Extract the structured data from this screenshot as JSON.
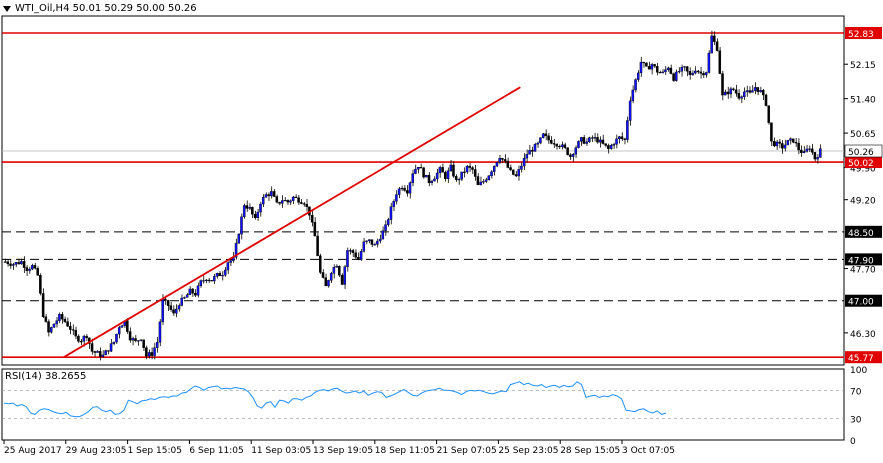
{
  "header": {
    "symbol_line": "WTI_Oil,H4  50.01 50.29 50.00 50.26"
  },
  "colors": {
    "bull": "#1010ff",
    "level_line": "#e00000",
    "trendline": "#e00000",
    "rsi_line": "#1e90ff",
    "price_tag_bg": "#e00000",
    "current_price_bg": "#ffffff"
  },
  "chart_data": [
    {
      "type": "candlestick",
      "title": "WTI_Oil,H4",
      "ylim": [
        45.6,
        53.2
      ],
      "yticks": [
        52.15,
        51.4,
        50.65,
        49.9,
        49.2,
        47.7,
        46.3
      ],
      "xticks": [
        "25 Aug 2017",
        "29 Aug 23:05",
        "1 Sep 15:05",
        "6 Sep 11:05",
        "11 Sep 03:05",
        "13 Sep 19:05",
        "18 Sep 11:05",
        "21 Sep 07:05",
        "25 Sep 23:05",
        "28 Sep 15:05",
        "3 Oct 07:05"
      ],
      "levels": [
        {
          "value": 52.83,
          "label": "52.83",
          "style": "solid"
        },
        {
          "value": 50.02,
          "label": "50.02",
          "style": "solid"
        },
        {
          "value": 48.5,
          "label": "48.50",
          "style": "dashed"
        },
        {
          "value": 47.9,
          "label": "47.90",
          "style": "dashed"
        },
        {
          "value": 47.0,
          "label": "47.00",
          "style": "dashed"
        },
        {
          "value": 45.77,
          "label": "45.77",
          "style": "solid"
        }
      ],
      "current_price": {
        "value": 50.26,
        "label": "50.26"
      },
      "trendline": {
        "from": {
          "bar": 22,
          "value": 45.77
        },
        "to": {
          "bar": 190,
          "value": 51.65
        }
      },
      "close_path": [
        [
          0,
          47.85
        ],
        [
          3,
          47.8
        ],
        [
          6,
          47.85
        ],
        [
          8,
          47.7
        ],
        [
          10,
          47.75
        ],
        [
          12,
          47.55
        ],
        [
          14,
          46.7
        ],
        [
          16,
          46.3
        ],
        [
          18,
          46.5
        ],
        [
          20,
          46.65
        ],
        [
          22,
          46.55
        ],
        [
          24,
          46.4
        ],
        [
          26,
          46.2
        ],
        [
          28,
          46.15
        ],
        [
          30,
          46.25
        ],
        [
          32,
          45.9
        ],
        [
          34,
          45.85
        ],
        [
          36,
          45.8
        ],
        [
          38,
          45.95
        ],
        [
          40,
          46.1
        ],
        [
          42,
          46.45
        ],
        [
          44,
          46.55
        ],
        [
          46,
          46.2
        ],
        [
          48,
          46.1
        ],
        [
          50,
          46.2
        ],
        [
          52,
          45.8
        ],
        [
          54,
          45.85
        ],
        [
          56,
          46.1
        ],
        [
          58,
          47.0
        ],
        [
          60,
          46.9
        ],
        [
          62,
          46.7
        ],
        [
          64,
          46.95
        ],
        [
          66,
          47.05
        ],
        [
          68,
          47.2
        ],
        [
          70,
          47.15
        ],
        [
          72,
          47.4
        ],
        [
          74,
          47.5
        ],
        [
          76,
          47.45
        ],
        [
          78,
          47.55
        ],
        [
          80,
          47.6
        ],
        [
          82,
          47.85
        ],
        [
          84,
          47.9
        ],
        [
          86,
          48.5
        ],
        [
          88,
          49.1
        ],
        [
          90,
          49.0
        ],
        [
          92,
          48.75
        ],
        [
          94,
          49.15
        ],
        [
          96,
          49.3
        ],
        [
          98,
          49.35
        ],
        [
          100,
          49.1
        ],
        [
          102,
          49.2
        ],
        [
          104,
          49.15
        ],
        [
          106,
          49.25
        ],
        [
          108,
          49.2
        ],
        [
          110,
          49.15
        ],
        [
          112,
          48.9
        ],
        [
          114,
          48.4
        ],
        [
          116,
          47.6
        ],
        [
          118,
          47.3
        ],
        [
          120,
          47.65
        ],
        [
          122,
          47.8
        ],
        [
          124,
          47.4
        ],
        [
          126,
          48.1
        ],
        [
          128,
          48.05
        ],
        [
          130,
          47.9
        ],
        [
          132,
          48.25
        ],
        [
          134,
          48.3
        ],
        [
          136,
          48.2
        ],
        [
          138,
          48.4
        ],
        [
          140,
          48.6
        ],
        [
          142,
          49.0
        ],
        [
          144,
          49.35
        ],
        [
          146,
          49.5
        ],
        [
          148,
          49.4
        ],
        [
          150,
          49.8
        ],
        [
          152,
          49.95
        ],
        [
          154,
          49.75
        ],
        [
          156,
          49.6
        ],
        [
          158,
          49.7
        ],
        [
          160,
          49.85
        ],
        [
          162,
          49.7
        ],
        [
          164,
          49.9
        ],
        [
          166,
          49.6
        ],
        [
          168,
          49.75
        ],
        [
          170,
          49.9
        ],
        [
          172,
          49.85
        ],
        [
          174,
          49.5
        ],
        [
          176,
          49.6
        ],
        [
          178,
          49.75
        ],
        [
          180,
          49.95
        ],
        [
          182,
          50.15
        ],
        [
          184,
          50.0
        ],
        [
          186,
          49.8
        ],
        [
          188,
          49.7
        ],
        [
          190,
          49.95
        ],
        [
          192,
          50.2
        ],
        [
          194,
          50.3
        ],
        [
          196,
          50.4
        ],
        [
          198,
          50.6
        ],
        [
          200,
          50.5
        ],
        [
          202,
          50.45
        ],
        [
          204,
          50.4
        ],
        [
          206,
          50.3
        ],
        [
          208,
          50.15
        ],
        [
          210,
          50.35
        ],
        [
          212,
          50.5
        ],
        [
          214,
          50.45
        ],
        [
          216,
          50.55
        ],
        [
          218,
          50.5
        ],
        [
          220,
          50.4
        ],
        [
          222,
          50.3
        ],
        [
          224,
          50.45
        ],
        [
          226,
          50.55
        ],
        [
          228,
          50.5
        ],
        [
          230,
          51.4
        ],
        [
          232,
          51.8
        ],
        [
          234,
          52.2
        ],
        [
          236,
          52.05
        ],
        [
          238,
          52.15
        ],
        [
          240,
          52.0
        ],
        [
          242,
          51.95
        ],
        [
          244,
          52.1
        ],
        [
          246,
          51.85
        ],
        [
          248,
          52.0
        ],
        [
          250,
          52.05
        ],
        [
          252,
          51.9
        ],
        [
          254,
          52.05
        ],
        [
          256,
          51.95
        ],
        [
          258,
          52.0
        ],
        [
          260,
          52.75
        ],
        [
          262,
          52.5
        ],
        [
          264,
          51.45
        ],
        [
          266,
          51.55
        ],
        [
          268,
          51.6
        ],
        [
          270,
          51.45
        ],
        [
          272,
          51.55
        ],
        [
          274,
          51.5
        ],
        [
          276,
          51.65
        ],
        [
          278,
          51.55
        ],
        [
          280,
          51.3
        ],
        [
          282,
          50.45
        ],
        [
          284,
          50.4
        ],
        [
          286,
          50.35
        ],
        [
          288,
          50.45
        ],
        [
          290,
          50.5
        ],
        [
          292,
          50.3
        ],
        [
          294,
          50.2
        ],
        [
          296,
          50.35
        ],
        [
          298,
          50.1
        ],
        [
          300,
          50.26
        ]
      ],
      "bar_count": 301
    },
    {
      "type": "line",
      "title": "RSI(14) 38.2655",
      "ylim": [
        0,
        100
      ],
      "yticks": [
        100,
        70,
        30,
        0
      ],
      "levels": [
        70,
        30
      ],
      "series": [
        {
          "values": [
            52,
            51,
            52,
            48,
            50,
            47,
            38,
            36,
            42,
            44,
            43,
            40,
            38,
            37,
            39,
            34,
            33,
            33,
            36,
            40,
            46,
            47,
            42,
            40,
            42,
            36,
            37,
            42,
            56,
            54,
            51,
            55,
            56,
            58,
            57,
            60,
            61,
            60,
            62,
            62,
            66,
            67,
            72,
            76,
            74,
            70,
            74,
            75,
            76,
            72,
            73,
            72,
            74,
            73,
            72,
            68,
            60,
            48,
            45,
            52,
            54,
            46,
            56,
            55,
            52,
            58,
            58,
            56,
            60,
            62,
            67,
            70,
            71,
            69,
            72,
            73,
            69,
            66,
            67,
            69,
            66,
            69,
            63,
            66,
            68,
            67,
            60,
            62,
            65,
            68,
            71,
            67,
            63,
            62,
            66,
            69,
            70,
            71,
            73,
            70,
            70,
            69,
            67,
            64,
            68,
            70,
            69,
            70,
            68,
            66,
            65,
            67,
            69,
            68,
            78,
            80,
            82,
            78,
            80,
            77,
            76,
            78,
            74,
            76,
            77,
            74,
            77,
            75,
            76,
            82,
            78,
            60,
            62,
            63,
            60,
            62,
            61,
            64,
            62,
            58,
            42,
            41,
            40,
            43,
            44,
            40,
            38,
            41,
            36,
            38
          ]
        }
      ]
    }
  ]
}
